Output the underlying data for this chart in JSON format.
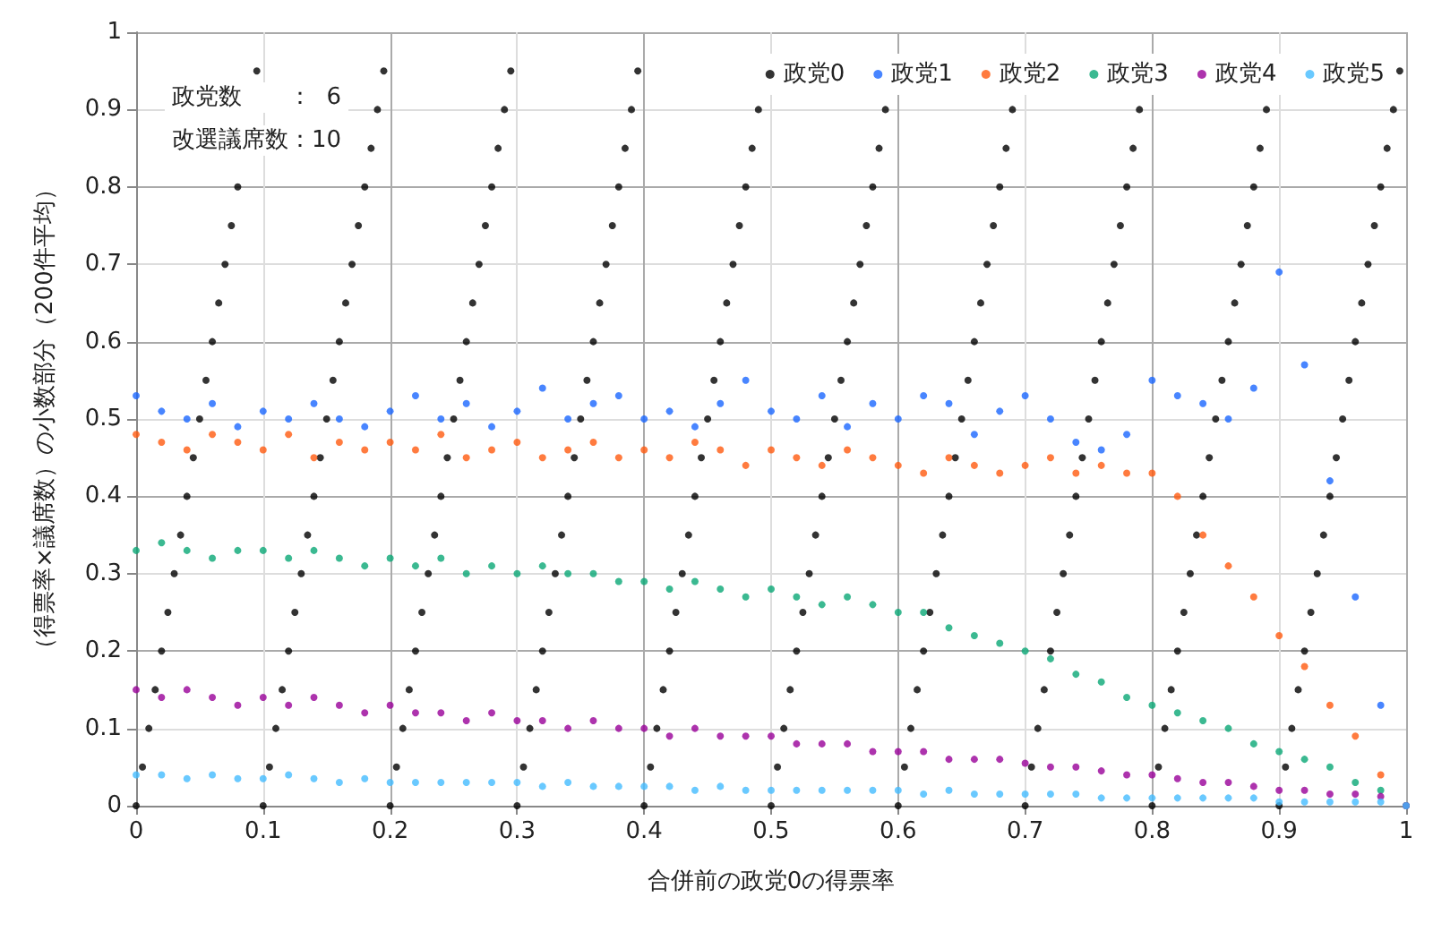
{
  "chart_data": {
    "type": "scatter",
    "xlabel": "合併前の政党0の得票率",
    "ylabel": "（得票率×議席数）の小数部分（200件平均）",
    "annotations": [
      "政党数　　：  6",
      "改選議席数：10"
    ],
    "xlim": [
      0,
      1
    ],
    "ylim": [
      0,
      1
    ],
    "xticks": [
      0,
      0.1,
      0.2,
      0.3,
      0.4,
      0.5,
      0.6,
      0.7,
      0.8,
      0.9,
      1
    ],
    "yticks": [
      0,
      0.1,
      0.2,
      0.3,
      0.4,
      0.5,
      0.6,
      0.7,
      0.8,
      0.9,
      1
    ],
    "grid": true,
    "legend": "top right",
    "marker": "circle",
    "x": [
      0,
      0.02,
      0.04,
      0.06,
      0.08,
      0.1,
      0.12,
      0.14,
      0.16,
      0.18,
      0.2,
      0.22,
      0.24,
      0.26,
      0.28,
      0.3,
      0.32,
      0.34,
      0.36,
      0.38,
      0.4,
      0.42,
      0.44,
      0.46,
      0.48,
      0.5,
      0.52,
      0.54,
      0.56,
      0.58,
      0.6,
      0.62,
      0.64,
      0.66,
      0.68,
      0.7,
      0.72,
      0.74,
      0.76,
      0.78,
      0.8,
      0.82,
      0.84,
      0.86,
      0.88,
      0.9,
      0.92,
      0.94,
      0.96,
      0.98,
      1
    ],
    "series": [
      {
        "name": "政党0",
        "color": "#000000",
        "x": [
          0,
          0.005,
          0.01,
          0.015,
          0.02,
          0.025,
          0.03,
          0.035,
          0.04,
          0.045,
          0.05,
          0.055,
          0.06,
          0.065,
          0.07,
          0.075,
          0.08,
          0.085,
          0.09,
          0.095,
          0.1,
          0.105,
          0.11,
          0.115,
          0.12,
          0.125,
          0.13,
          0.135,
          0.14,
          0.145,
          0.15,
          0.155,
          0.16,
          0.165,
          0.17,
          0.175,
          0.18,
          0.185,
          0.19,
          0.195,
          0.2,
          0.205,
          0.21,
          0.215,
          0.22,
          0.225,
          0.23,
          0.235,
          0.24,
          0.245,
          0.25,
          0.255,
          0.26,
          0.265,
          0.27,
          0.275,
          0.28,
          0.285,
          0.29,
          0.295,
          0.3,
          0.305,
          0.31,
          0.315,
          0.32,
          0.325,
          0.33,
          0.335,
          0.34,
          0.345,
          0.35,
          0.355,
          0.36,
          0.365,
          0.37,
          0.375,
          0.38,
          0.385,
          0.39,
          0.395,
          0.4,
          0.405,
          0.41,
          0.415,
          0.42,
          0.425,
          0.43,
          0.435,
          0.44,
          0.445,
          0.45,
          0.455,
          0.46,
          0.465,
          0.47,
          0.475,
          0.48,
          0.485,
          0.49,
          0.495,
          0.5,
          0.505,
          0.51,
          0.515,
          0.52,
          0.525,
          0.53,
          0.535,
          0.54,
          0.545,
          0.55,
          0.555,
          0.56,
          0.565,
          0.57,
          0.575,
          0.58,
          0.585,
          0.59,
          0.595,
          0.6,
          0.605,
          0.61,
          0.615,
          0.62,
          0.625,
          0.63,
          0.635,
          0.64,
          0.645,
          0.65,
          0.655,
          0.66,
          0.665,
          0.67,
          0.675,
          0.68,
          0.685,
          0.69,
          0.695,
          0.7,
          0.705,
          0.71,
          0.715,
          0.72,
          0.725,
          0.73,
          0.735,
          0.74,
          0.745,
          0.75,
          0.755,
          0.76,
          0.765,
          0.77,
          0.775,
          0.78,
          0.785,
          0.79,
          0.795,
          0.8,
          0.805,
          0.81,
          0.815,
          0.82,
          0.825,
          0.83,
          0.835,
          0.84,
          0.845,
          0.85,
          0.855,
          0.86,
          0.865,
          0.87,
          0.875,
          0.88,
          0.885,
          0.89,
          0.895,
          0.9,
          0.905,
          0.91,
          0.915,
          0.92,
          0.925,
          0.93,
          0.935,
          0.94,
          0.945,
          0.95,
          0.955,
          0.96,
          0.965,
          0.97,
          0.975,
          0.98,
          0.985,
          0.99,
          0.995
        ],
        "values": [
          0,
          0.05,
          0.1,
          0.15,
          0.2,
          0.25,
          0.3,
          0.35,
          0.4,
          0.45,
          0.5,
          0.55,
          0.6,
          0.65,
          0.7,
          0.75,
          0.8,
          null,
          null,
          0.95,
          0,
          0.05,
          0.1,
          0.15,
          0.2,
          0.25,
          0.3,
          0.35,
          0.4,
          0.45,
          0.5,
          0.55,
          0.6,
          0.65,
          0.7,
          0.75,
          0.8,
          0.85,
          0.9,
          0.95,
          0,
          0.05,
          0.1,
          0.15,
          0.2,
          0.25,
          0.3,
          0.35,
          0.4,
          0.45,
          0.5,
          0.55,
          0.6,
          0.65,
          0.7,
          0.75,
          0.8,
          0.85,
          0.9,
          0.95,
          0,
          0.05,
          0.1,
          0.15,
          0.2,
          0.25,
          0.3,
          0.35,
          0.4,
          0.45,
          0.5,
          0.55,
          0.6,
          0.65,
          0.7,
          0.75,
          0.8,
          0.85,
          0.9,
          0.95,
          0,
          0.05,
          0.1,
          0.15,
          0.2,
          0.25,
          0.3,
          0.35,
          0.4,
          0.45,
          0.5,
          0.55,
          0.6,
          0.65,
          0.7,
          0.75,
          0.8,
          0.85,
          0.9,
          null,
          0,
          0.05,
          0.1,
          0.15,
          0.2,
          0.25,
          0.3,
          0.35,
          0.4,
          0.45,
          0.5,
          0.55,
          0.6,
          0.65,
          0.7,
          0.75,
          0.8,
          0.85,
          0.9,
          null,
          0,
          0.05,
          0.1,
          0.15,
          0.2,
          0.25,
          0.3,
          0.35,
          0.4,
          0.45,
          0.5,
          0.55,
          0.6,
          0.65,
          0.7,
          0.75,
          0.8,
          0.85,
          0.9,
          null,
          0,
          0.05,
          0.1,
          0.15,
          0.2,
          0.25,
          0.3,
          0.35,
          0.4,
          0.45,
          0.5,
          0.55,
          0.6,
          0.65,
          0.7,
          0.75,
          0.8,
          0.85,
          0.9,
          null,
          0,
          0.05,
          0.1,
          0.15,
          0.2,
          0.25,
          0.3,
          0.35,
          0.4,
          0.45,
          0.5,
          0.55,
          0.6,
          0.65,
          0.7,
          0.75,
          0.8,
          0.85,
          0.9,
          null,
          0,
          0.05,
          0.1,
          0.15,
          0.2,
          0.25,
          0.3,
          0.35,
          0.4,
          0.45,
          0.5,
          0.55,
          0.6,
          0.65,
          0.7,
          0.75,
          0.8,
          0.85,
          0.9,
          0.95
        ]
      },
      {
        "name": "政党1",
        "color": "#1a66ff",
        "values": [
          0.53,
          0.51,
          0.5,
          0.52,
          0.49,
          0.51,
          0.5,
          0.52,
          0.5,
          0.49,
          0.51,
          0.53,
          0.5,
          0.52,
          0.49,
          0.51,
          0.54,
          0.5,
          0.52,
          0.53,
          0.5,
          0.51,
          0.49,
          0.52,
          0.55,
          0.51,
          0.5,
          0.53,
          0.49,
          0.52,
          0.5,
          0.53,
          0.52,
          0.48,
          0.51,
          0.53,
          0.5,
          0.47,
          0.46,
          0.48,
          0.55,
          0.53,
          0.52,
          0.5,
          0.54,
          0.69,
          0.57,
          0.42,
          0.27,
          0.13,
          0
        ]
      },
      {
        "name": "政党2",
        "color": "#ff5a0f",
        "values": [
          0.48,
          0.47,
          0.46,
          0.48,
          0.47,
          0.46,
          0.48,
          0.45,
          0.47,
          0.46,
          0.47,
          0.46,
          0.48,
          0.45,
          0.46,
          0.47,
          0.45,
          0.46,
          0.47,
          0.45,
          0.46,
          0.45,
          0.47,
          0.46,
          0.44,
          0.46,
          0.45,
          0.44,
          0.46,
          0.45,
          0.44,
          0.43,
          0.45,
          0.44,
          0.43,
          0.44,
          0.45,
          0.43,
          0.44,
          0.43,
          0.43,
          0.4,
          0.35,
          0.31,
          0.27,
          0.22,
          0.18,
          0.13,
          0.09,
          0.04,
          0
        ]
      },
      {
        "name": "政党3",
        "color": "#0aa876",
        "values": [
          0.33,
          0.34,
          0.33,
          0.32,
          0.33,
          0.33,
          0.32,
          0.33,
          0.32,
          0.31,
          0.32,
          0.31,
          0.32,
          0.3,
          0.31,
          0.3,
          0.31,
          0.3,
          0.3,
          0.29,
          0.29,
          0.28,
          0.29,
          0.28,
          0.27,
          0.28,
          0.27,
          0.26,
          0.27,
          0.26,
          0.25,
          0.25,
          0.23,
          0.22,
          0.21,
          0.2,
          0.19,
          0.17,
          0.16,
          0.14,
          0.13,
          0.12,
          0.11,
          0.1,
          0.08,
          0.07,
          0.06,
          0.05,
          0.03,
          0.02,
          0
        ]
      },
      {
        "name": "政党4",
        "color": "#990099",
        "values": [
          0.15,
          0.14,
          0.15,
          0.14,
          0.13,
          0.14,
          0.13,
          0.14,
          0.13,
          0.12,
          0.13,
          0.12,
          0.12,
          0.11,
          0.12,
          0.11,
          0.11,
          0.1,
          0.11,
          0.1,
          0.1,
          0.09,
          0.1,
          0.09,
          0.09,
          0.09,
          0.08,
          0.08,
          0.08,
          0.07,
          0.07,
          0.07,
          0.06,
          0.06,
          0.06,
          0.055,
          0.05,
          0.05,
          0.045,
          0.04,
          0.04,
          0.035,
          0.03,
          0.03,
          0.025,
          0.02,
          0.02,
          0.015,
          0.015,
          0.012,
          0
        ]
      },
      {
        "name": "政党5",
        "color": "#44bbff",
        "values": [
          0.04,
          0.04,
          0.035,
          0.04,
          0.035,
          0.035,
          0.04,
          0.035,
          0.03,
          0.035,
          0.03,
          0.03,
          0.03,
          0.03,
          0.03,
          0.03,
          0.025,
          0.03,
          0.025,
          0.025,
          0.025,
          0.025,
          0.02,
          0.025,
          0.02,
          0.02,
          0.02,
          0.02,
          0.02,
          0.02,
          0.02,
          0.015,
          0.02,
          0.015,
          0.015,
          0.015,
          0.015,
          0.015,
          0.01,
          0.01,
          0.01,
          0.01,
          0.01,
          0.01,
          0.01,
          0.005,
          0.005,
          0.005,
          0.005,
          0.005,
          0
        ]
      }
    ]
  }
}
